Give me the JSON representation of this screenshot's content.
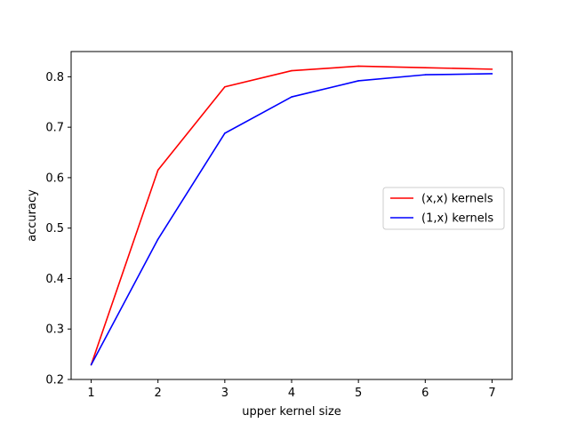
{
  "chart_data": {
    "type": "line",
    "title": "",
    "xlabel": "upper kernel size",
    "ylabel": "accuracy",
    "x": [
      1,
      2,
      3,
      4,
      5,
      6,
      7
    ],
    "xticks": [
      "1",
      "2",
      "3",
      "4",
      "5",
      "6",
      "7"
    ],
    "yticks": [
      "0.2",
      "0.3",
      "0.4",
      "0.5",
      "0.6",
      "0.7",
      "0.8"
    ],
    "xlim": [
      0.7,
      7.3
    ],
    "ylim": [
      0.2,
      0.85
    ],
    "grid": false,
    "legend_position": "center-right",
    "series": [
      {
        "name": "(x,x) kernels",
        "color": "#ff0000",
        "values": [
          0.229,
          0.615,
          0.78,
          0.812,
          0.821,
          0.818,
          0.815
        ]
      },
      {
        "name": "(1,x) kernels",
        "color": "#0000ff",
        "values": [
          0.229,
          0.478,
          0.688,
          0.76,
          0.792,
          0.804,
          0.806
        ]
      }
    ]
  }
}
